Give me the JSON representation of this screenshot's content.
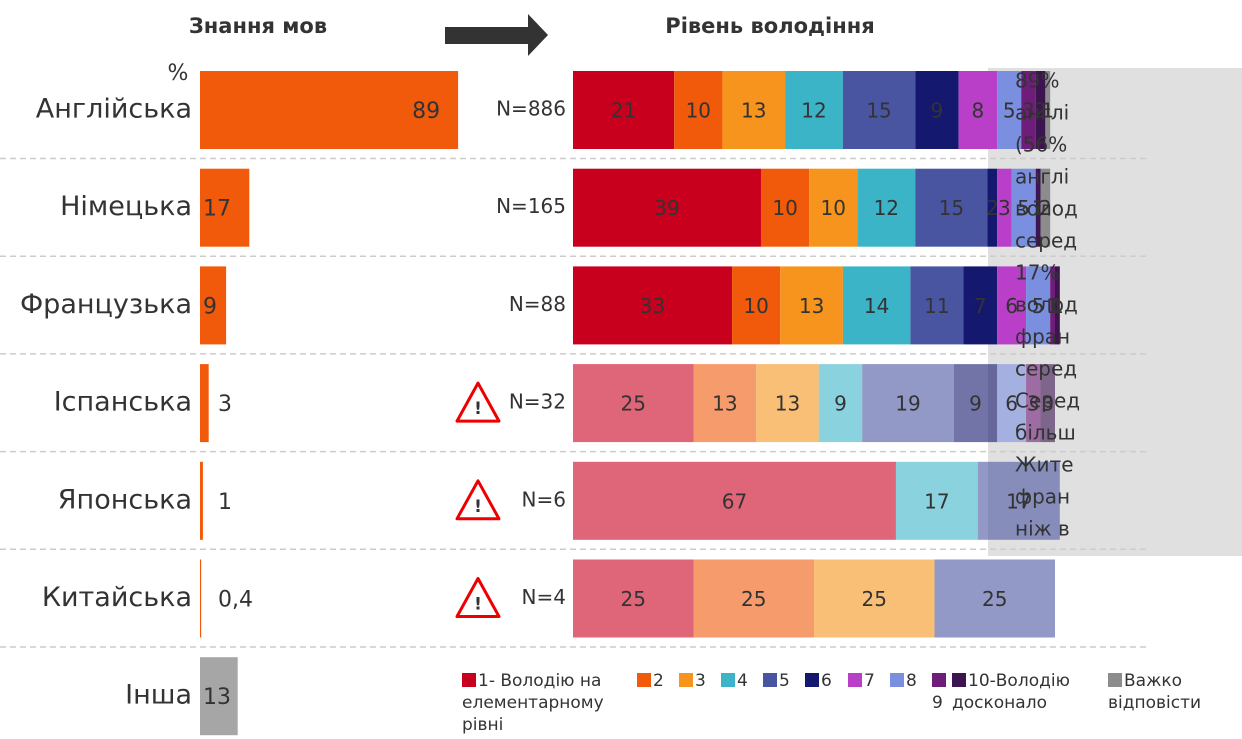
{
  "chart_data": [
    {
      "type": "hbar",
      "title": "Знання мов",
      "unit_label": "%",
      "categories": [
        "Англійська",
        "Німецька",
        "Французька",
        "Іспанська",
        "Японська",
        "Китайська",
        "Інша"
      ],
      "values": [
        89,
        17,
        9,
        3,
        1,
        0.4,
        13
      ],
      "value_labels": [
        "89",
        "17",
        "9",
        "3",
        "1",
        "0,4",
        "13"
      ],
      "colors": [
        "#f05a0a",
        "#f05a0a",
        "#f05a0a",
        "#f05a0a",
        "#f05a0a",
        "#f05a0a",
        "#a6a6a6"
      ]
    },
    {
      "type": "stacked_hbar",
      "title": "Рівень володіння",
      "row_labels": [
        "N=886",
        "N=165",
        "N=88",
        "N=32",
        "N=6",
        "N=4"
      ],
      "warnings": [
        false,
        false,
        false,
        true,
        true,
        true
      ],
      "series": [
        {
          "name": "1- Володію на елементарному рівні",
          "color": "#c8001e",
          "values": [
            21,
            39,
            33,
            25,
            67,
            25
          ]
        },
        {
          "name": "2",
          "color": "#f05a0a",
          "values": [
            10,
            10,
            10,
            13,
            null,
            25
          ]
        },
        {
          "name": "3",
          "color": "#f7941d",
          "values": [
            13,
            10,
            13,
            13,
            null,
            25
          ]
        },
        {
          "name": "4",
          "color": "#3cb4c8",
          "values": [
            12,
            12,
            14,
            9,
            17,
            null
          ]
        },
        {
          "name": "5",
          "color": "#4a55a2",
          "values": [
            15,
            15,
            11,
            19,
            17,
            25
          ]
        },
        {
          "name": "6",
          "color": "#14186e",
          "values": [
            9,
            2,
            7,
            9,
            null,
            null
          ]
        },
        {
          "name": "7",
          "color": "#b93fc8",
          "values": [
            8,
            3,
            6,
            null,
            null,
            null
          ]
        },
        {
          "name": "8",
          "color": "#7b8fe0",
          "values": [
            5,
            5,
            5,
            6,
            null,
            null
          ]
        },
        {
          "name": "9",
          "color": "#6e1e78",
          "values": [
            3,
            null,
            1,
            3,
            null,
            null
          ]
        },
        {
          "name": "10-Володію досконало",
          "color": "#3c1450",
          "values": [
            2,
            1,
            1,
            3,
            null,
            null
          ]
        },
        {
          "name": "Важко відповісти",
          "color": "#8c8c8c",
          "values": [
            1,
            2,
            null,
            null,
            null,
            null
          ]
        }
      ]
    }
  ],
  "note": {
    "lines": [
      "89%",
      "англі",
      "(56%",
      "англі",
      "волод",
      "серед",
      "17%",
      "волод",
      "фран",
      "серед",
      "Серед",
      "більш",
      "Жите",
      "фран",
      "ніж в"
    ]
  }
}
